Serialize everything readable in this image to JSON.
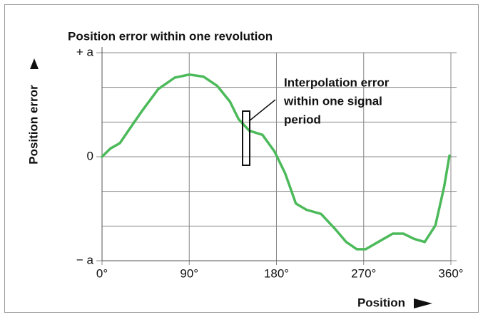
{
  "chart_data": {
    "type": "line",
    "title": "Position error within one revolution",
    "xlabel": "Position",
    "ylabel": "Position error",
    "annotation": [
      "Interpolation error",
      "within one signal",
      "period"
    ],
    "xlim": [
      0,
      360
    ],
    "xticks": [
      {
        "value": 0,
        "label": "0°"
      },
      {
        "value": 90,
        "label": "90°"
      },
      {
        "value": 180,
        "label": "180°"
      },
      {
        "value": 270,
        "label": "270°"
      },
      {
        "value": 360,
        "label": "360°"
      }
    ],
    "ylim": [
      -1,
      1
    ],
    "yticks": [
      {
        "value": 1,
        "label": "+ a"
      },
      {
        "value": 0,
        "label": "0"
      },
      {
        "value": -1,
        "label": "− a"
      }
    ],
    "yminor": [
      0.667,
      0.333,
      -0.333,
      -0.667
    ],
    "grid": true,
    "series": [
      {
        "color": "#4cba5a",
        "x": [
          0,
          8.8,
          18.4,
          27.2,
          42,
          58,
          75,
          90,
          104.7,
          119,
          132,
          141,
          152,
          165.6,
          178,
          189,
          200,
          211,
          226,
          241,
          252,
          263,
          272,
          285,
          300,
          311,
          322,
          333,
          344,
          353,
          358.5
        ],
        "values": [
          0,
          0.08,
          0.13,
          0.25,
          0.45,
          0.65,
          0.76,
          0.79,
          0.77,
          0.68,
          0.53,
          0.36,
          0.25,
          0.21,
          0.05,
          -0.16,
          -0.45,
          -0.51,
          -0.55,
          -0.7,
          -0.82,
          -0.89,
          -0.89,
          -0.82,
          -0.74,
          -0.74,
          -0.79,
          -0.82,
          -0.66,
          -0.29,
          0.01
        ]
      }
    ]
  }
}
